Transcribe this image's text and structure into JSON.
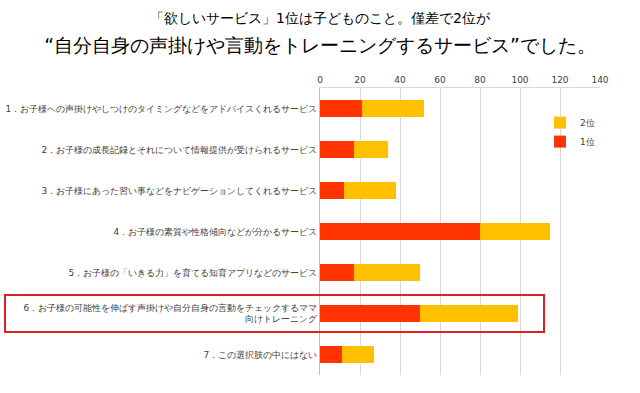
{
  "chart_data": {
    "type": "bar",
    "orientation": "horizontal",
    "stacked": true,
    "subtitle": "「欲しいサービス」1位は子どものこと。僅差で2位が",
    "title": "“自分自身の声掛けや言動をトレーニングするサービス”でした。",
    "categories": [
      "1．お子様への声掛けやしつけのタイミングなどをアドバイスくれるサービス",
      "2．お子様の成長記録とそれについて情報提供が受けられるサービス",
      "3．お子様にあった習い事などをナビゲーションしてくれるサービス",
      "4．お子様の素質や性格傾向などが分かるサービス",
      "5．お子様の「いきる力」を育てる知育アプリなどのサービス",
      "6．お子様の可能性を伸ばす声掛けや自分自身の言動をチェックするママ向けトレーニング",
      "7．この選択肢の中にはない"
    ],
    "series": [
      {
        "name": "1位",
        "color": "#ff3300",
        "values": [
          21,
          17,
          12,
          80,
          17,
          50,
          11
        ]
      },
      {
        "name": "2位",
        "color": "#ffc000",
        "values": [
          31,
          17,
          26,
          35,
          33,
          49,
          16
        ]
      }
    ],
    "xlim": [
      0,
      140
    ],
    "xticks": [
      0,
      20,
      40,
      60,
      80,
      100,
      120,
      140
    ],
    "grid": true,
    "legend": "upper right"
  }
}
